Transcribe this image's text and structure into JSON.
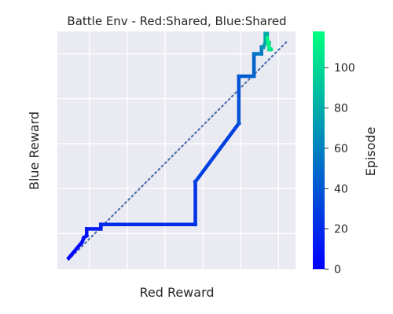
{
  "chart_data": {
    "type": "line",
    "title": "Battle Env - Red:Shared, Blue:Shared",
    "xlabel": "Red Reward",
    "ylabel": "Blue Reward",
    "colorbar": {
      "label": "Episode",
      "range": [
        0,
        118
      ],
      "ticks": [
        0,
        20,
        40,
        60,
        80,
        100
      ],
      "colormap": [
        "#0000ff",
        "#00ff80"
      ]
    },
    "xlim": [
      -1.7,
      10.9
    ],
    "ylim": [
      -1.6,
      9.0
    ],
    "grid": true,
    "background": "#eaeaf2",
    "diagonal_color": "#4c72b0",
    "series": [
      {
        "x": [
          -1.1,
          -0.4,
          -0.3,
          -0.15,
          -0.15,
          0.6,
          0.6,
          0.6,
          5.6,
          5.6,
          5.6,
          7.9,
          7.9,
          7.9,
          8.7,
          8.7,
          8.7,
          9.1,
          9.1,
          9.2,
          9.2,
          9.3,
          9.3,
          9.4,
          9.4,
          9.5,
          9.5,
          9.6,
          9.5,
          9.4
        ],
        "y": [
          -1.1,
          -0.4,
          -0.2,
          -0.1,
          0.2,
          0.2,
          0.4,
          0.4,
          0.4,
          2.3,
          2.3,
          4.9,
          4.9,
          7.0,
          7.0,
          7.9,
          8.0,
          8.0,
          8.3,
          8.3,
          8.3,
          8.5,
          8.9,
          8.9,
          8.5,
          8.5,
          8.2,
          8.2,
          8.3,
          8.7
        ],
        "episode": [
          0,
          3,
          6,
          8,
          9,
          11,
          14,
          18,
          22,
          25,
          28,
          32,
          36,
          40,
          44,
          48,
          52,
          56,
          60,
          64,
          68,
          72,
          76,
          80,
          84,
          90,
          96,
          102,
          110,
          118
        ]
      }
    ]
  }
}
